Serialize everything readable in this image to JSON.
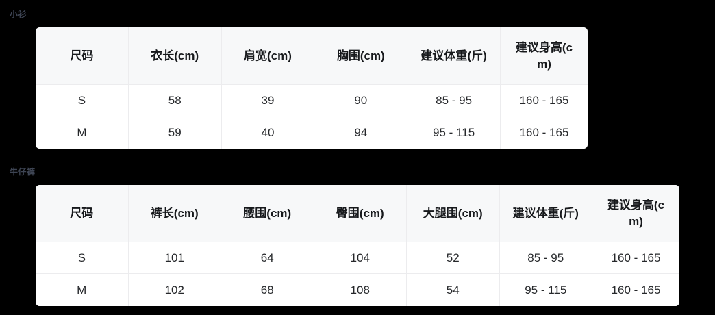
{
  "colors": {
    "page_bg": "#000000",
    "table_bg": "#ffffff",
    "header_bg": "#f7f8f9",
    "grid_border": "#ececee",
    "header_text": "#17191c",
    "cell_text": "#26282b",
    "section_label_text": "#3e4554"
  },
  "sections": [
    {
      "label": "小衫",
      "columns": [
        "尺码",
        "衣长(cm)",
        "肩宽(cm)",
        "胸围(cm)",
        "建议体重(斤)",
        "建议身高(cm)"
      ],
      "rows": [
        [
          "S",
          "58",
          "39",
          "90",
          "85 - 95",
          "160 - 165"
        ],
        [
          "M",
          "59",
          "40",
          "94",
          "95 - 115",
          "160 - 165"
        ]
      ]
    },
    {
      "label": "牛仔裤",
      "columns": [
        "尺码",
        "裤长(cm)",
        "腰围(cm)",
        "臀围(cm)",
        "大腿围(cm)",
        "建议体重(斤)",
        "建议身高(cm)"
      ],
      "rows": [
        [
          "S",
          "101",
          "64",
          "104",
          "52",
          "85 - 95",
          "160 - 165"
        ],
        [
          "M",
          "102",
          "68",
          "108",
          "54",
          "95 - 115",
          "160 - 165"
        ]
      ]
    }
  ]
}
